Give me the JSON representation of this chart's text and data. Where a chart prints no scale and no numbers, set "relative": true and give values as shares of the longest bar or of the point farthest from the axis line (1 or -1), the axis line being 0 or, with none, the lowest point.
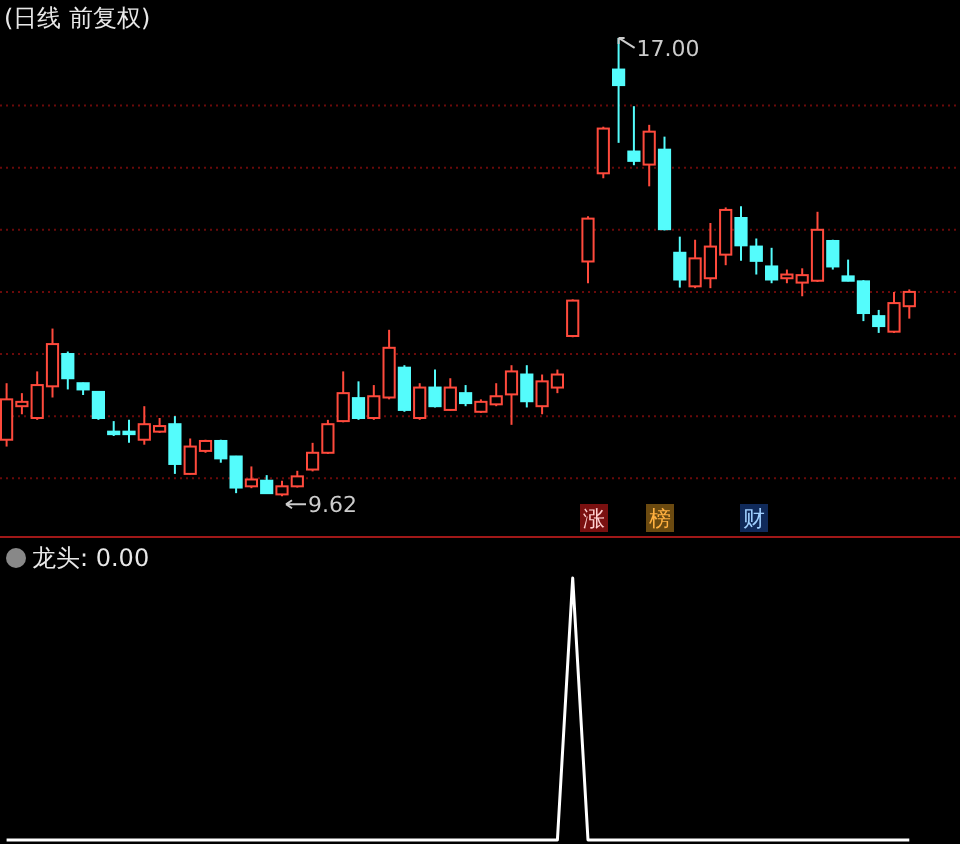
{
  "chart_data": [
    {
      "type": "candlestick",
      "title": "(日线 前复权)",
      "categories": [
        null,
        null,
        null,
        null,
        null,
        null,
        null,
        null,
        null,
        null,
        null,
        null,
        null,
        null,
        null,
        null,
        null,
        null,
        null,
        null,
        null,
        null,
        null,
        null,
        null,
        null,
        null,
        null,
        null,
        null,
        null,
        null,
        null,
        null,
        null,
        null,
        null,
        null,
        null,
        null,
        null,
        null,
        null,
        null,
        null,
        null,
        null,
        null,
        null,
        null,
        null,
        null,
        null,
        null,
        null,
        null,
        null,
        null,
        null,
        null
      ],
      "ohlc": [
        [
          10.53,
          11.44,
          10.42,
          11.18
        ],
        [
          11.07,
          11.28,
          10.94,
          11.14
        ],
        [
          10.88,
          11.63,
          10.85,
          11.41
        ],
        [
          11.39,
          12.32,
          11.21,
          12.07
        ],
        [
          11.91,
          11.95,
          11.34,
          11.52
        ],
        [
          11.44,
          11.45,
          11.25,
          11.34
        ],
        [
          11.3,
          11.31,
          10.85,
          10.88
        ],
        [
          10.66,
          10.83,
          10.59,
          10.62
        ],
        [
          10.66,
          10.85,
          10.48,
          10.62
        ],
        [
          10.53,
          11.07,
          10.45,
          10.78
        ],
        [
          10.66,
          10.88,
          10.64,
          10.75
        ],
        [
          10.78,
          10.91,
          9.98,
          10.14
        ],
        [
          9.98,
          10.55,
          9.97,
          10.42
        ],
        [
          10.35,
          10.53,
          10.32,
          10.51
        ],
        [
          10.51,
          10.53,
          10.16,
          10.23
        ],
        [
          10.26,
          10.27,
          9.67,
          9.76
        ],
        [
          9.78,
          10.1,
          9.75,
          9.89
        ],
        [
          9.87,
          9.96,
          9.66,
          9.67
        ],
        [
          9.65,
          9.87,
          9.62,
          9.78
        ],
        [
          9.78,
          10.03,
          9.76,
          9.94
        ],
        [
          10.05,
          10.48,
          10.02,
          10.32
        ],
        [
          10.32,
          10.85,
          10.3,
          10.78
        ],
        [
          10.83,
          11.63,
          10.81,
          11.28
        ],
        [
          11.2,
          11.47,
          10.85,
          10.88
        ],
        [
          10.88,
          11.41,
          10.85,
          11.23
        ],
        [
          11.21,
          12.3,
          11.18,
          12.01
        ],
        [
          11.69,
          11.73,
          10.98,
          11.01
        ],
        [
          10.88,
          11.44,
          10.85,
          11.37
        ],
        [
          11.37,
          11.66,
          11.05,
          11.07
        ],
        [
          11.01,
          11.52,
          11.0,
          11.37
        ],
        [
          11.28,
          11.41,
          11.07,
          11.12
        ],
        [
          10.98,
          11.18,
          10.96,
          11.14
        ],
        [
          11.1,
          11.44,
          11.07,
          11.23
        ],
        [
          11.26,
          11.73,
          10.77,
          11.63
        ],
        [
          11.58,
          11.73,
          11.05,
          11.15
        ],
        [
          11.07,
          11.58,
          10.94,
          11.47
        ],
        [
          11.37,
          11.66,
          11.28,
          11.58
        ],
        [
          12.2,
          12.79,
          12.18,
          12.77
        ],
        [
          13.4,
          14.13,
          13.05,
          14.09
        ],
        [
          14.82,
          15.57,
          14.74,
          15.54
        ],
        [
          16.49,
          17.0,
          15.31,
          16.24
        ],
        [
          15.17,
          15.9,
          14.95,
          15.02
        ],
        [
          14.96,
          15.6,
          14.61,
          15.49
        ],
        [
          15.2,
          15.41,
          13.9,
          13.92
        ],
        [
          13.54,
          13.8,
          12.98,
          13.11
        ],
        [
          13.0,
          13.75,
          12.97,
          13.45
        ],
        [
          13.13,
          14.02,
          12.97,
          13.64
        ],
        [
          13.51,
          14.27,
          13.34,
          14.23
        ],
        [
          14.1,
          14.29,
          13.41,
          13.66
        ],
        [
          13.64,
          13.77,
          13.19,
          13.41
        ],
        [
          13.32,
          13.62,
          13.05,
          13.11
        ],
        [
          13.13,
          13.27,
          13.05,
          13.19
        ],
        [
          13.06,
          13.29,
          12.84,
          13.18
        ],
        [
          13.09,
          14.2,
          13.07,
          13.91
        ],
        [
          13.73,
          13.75,
          13.27,
          13.32
        ],
        [
          13.16,
          13.43,
          13.08,
          13.09
        ],
        [
          13.08,
          13.1,
          12.44,
          12.57
        ],
        [
          12.52,
          12.62,
          12.25,
          12.36
        ],
        [
          12.27,
          12.91,
          12.25,
          12.73
        ],
        [
          12.68,
          12.95,
          12.48,
          12.91
        ]
      ],
      "ylim": [
        8.98,
        17.61
      ],
      "yticks": [
        {
          "value": 9.91,
          "label": null
        },
        {
          "value": 10.91,
          "label": null
        },
        {
          "value": 11.91,
          "label": null
        },
        {
          "value": 12.91,
          "label": null
        },
        {
          "value": 13.91,
          "label": null
        },
        {
          "value": 14.91,
          "label": null
        },
        {
          "value": 15.91,
          "label": null
        }
      ],
      "grid": "y",
      "tick_labels": false,
      "annotations": [
        "17.00",
        "9.62",
        "涨",
        "榜",
        "财"
      ]
    },
    {
      "type": "line",
      "title": "龙头: 0.00",
      "relative": true,
      "tick_labels": false,
      "categories": [
        null,
        null,
        null,
        null,
        null,
        null,
        null,
        null,
        null,
        null,
        null,
        null,
        null,
        null,
        null,
        null,
        null,
        null,
        null,
        null,
        null,
        null,
        null,
        null,
        null,
        null,
        null,
        null,
        null,
        null,
        null,
        null,
        null,
        null,
        null,
        null,
        null,
        null,
        null,
        null,
        null,
        null,
        null,
        null,
        null,
        null,
        null,
        null,
        null,
        null,
        null,
        null,
        null,
        null,
        null,
        null,
        null,
        null,
        null,
        null
      ],
      "series": [
        {
          "color": "#ffffff",
          "values": [
            0,
            0,
            0,
            0,
            0,
            0,
            0,
            0,
            0,
            0,
            0,
            0,
            0,
            0,
            0,
            0,
            0,
            0,
            0,
            0,
            0,
            0,
            0,
            0,
            0,
            0,
            0,
            0,
            0,
            0,
            0,
            0,
            0,
            0,
            0,
            0,
            0,
            1,
            0,
            0,
            0,
            0,
            0,
            0,
            0,
            0,
            0,
            0,
            0,
            0,
            0,
            0,
            0,
            0,
            0,
            0,
            0,
            0,
            0,
            0
          ]
        }
      ]
    }
  ]
}
